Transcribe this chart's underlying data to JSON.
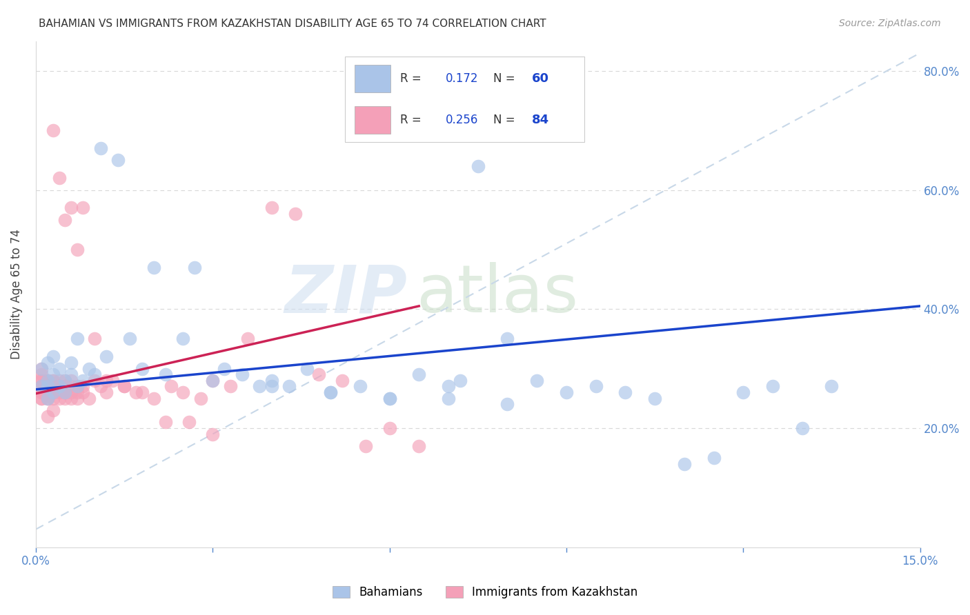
{
  "title": "BAHAMIAN VS IMMIGRANTS FROM KAZAKHSTAN DISABILITY AGE 65 TO 74 CORRELATION CHART",
  "source": "Source: ZipAtlas.com",
  "ylabel": "Disability Age 65 to 74",
  "xlim": [
    0.0,
    0.15
  ],
  "ylim": [
    0.0,
    0.85
  ],
  "bahamians_color": "#aac4e8",
  "kazakhstan_color": "#f4a0b8",
  "trendline_blue": "#1a44cc",
  "trendline_pink": "#cc2255",
  "trendline_dashed_color": "#c8d8e8",
  "grid_color": "#d8d8d8",
  "right_tick_color": "#5588cc",
  "blue_line_x": [
    0.0,
    0.15
  ],
  "blue_line_y": [
    0.265,
    0.405
  ],
  "pink_line_x": [
    0.0,
    0.065
  ],
  "pink_line_y": [
    0.258,
    0.405
  ],
  "dash_line_x": [
    0.0,
    0.15
  ],
  "dash_line_y": [
    0.03,
    0.83
  ],
  "legend_r1": "0.172",
  "legend_n1": "60",
  "legend_r2": "0.256",
  "legend_n2": "84",
  "bahamians_x": [
    0.001,
    0.001,
    0.002,
    0.002,
    0.002,
    0.002,
    0.003,
    0.003,
    0.003,
    0.004,
    0.004,
    0.005,
    0.005,
    0.006,
    0.006,
    0.007,
    0.007,
    0.008,
    0.009,
    0.01,
    0.011,
    0.012,
    0.014,
    0.016,
    0.018,
    0.02,
    0.022,
    0.025,
    0.027,
    0.03,
    0.032,
    0.035,
    0.038,
    0.04,
    0.043,
    0.046,
    0.05,
    0.055,
    0.06,
    0.065,
    0.07,
    0.072,
    0.075,
    0.08,
    0.085,
    0.09,
    0.095,
    0.1,
    0.105,
    0.11,
    0.115,
    0.12,
    0.125,
    0.13,
    0.135,
    0.04,
    0.05,
    0.06,
    0.07,
    0.08
  ],
  "bahamians_y": [
    0.3,
    0.27,
    0.28,
    0.31,
    0.25,
    0.27,
    0.29,
    0.26,
    0.32,
    0.3,
    0.27,
    0.28,
    0.26,
    0.31,
    0.29,
    0.27,
    0.35,
    0.28,
    0.3,
    0.29,
    0.67,
    0.32,
    0.65,
    0.35,
    0.3,
    0.47,
    0.29,
    0.35,
    0.47,
    0.28,
    0.3,
    0.29,
    0.27,
    0.28,
    0.27,
    0.3,
    0.26,
    0.27,
    0.25,
    0.29,
    0.27,
    0.28,
    0.64,
    0.35,
    0.28,
    0.26,
    0.27,
    0.26,
    0.25,
    0.14,
    0.15,
    0.26,
    0.27,
    0.2,
    0.27,
    0.27,
    0.26,
    0.25,
    0.25,
    0.24
  ],
  "kazakhstan_x": [
    0.0005,
    0.001,
    0.001,
    0.001,
    0.001,
    0.001,
    0.001,
    0.001,
    0.001,
    0.001,
    0.0015,
    0.002,
    0.002,
    0.002,
    0.002,
    0.002,
    0.002,
    0.002,
    0.002,
    0.002,
    0.002,
    0.002,
    0.002,
    0.003,
    0.003,
    0.003,
    0.003,
    0.003,
    0.003,
    0.003,
    0.003,
    0.004,
    0.004,
    0.004,
    0.004,
    0.004,
    0.005,
    0.005,
    0.005,
    0.005,
    0.005,
    0.006,
    0.006,
    0.006,
    0.006,
    0.007,
    0.007,
    0.007,
    0.008,
    0.008,
    0.009,
    0.01,
    0.011,
    0.012,
    0.013,
    0.015,
    0.017,
    0.02,
    0.023,
    0.025,
    0.028,
    0.03,
    0.033,
    0.036,
    0.04,
    0.044,
    0.048,
    0.052,
    0.056,
    0.06,
    0.065,
    0.003,
    0.004,
    0.005,
    0.006,
    0.007,
    0.008,
    0.01,
    0.012,
    0.015,
    0.018,
    0.022,
    0.026,
    0.03
  ],
  "kazakhstan_y": [
    0.28,
    0.26,
    0.27,
    0.28,
    0.25,
    0.29,
    0.3,
    0.26,
    0.27,
    0.25,
    0.27,
    0.26,
    0.27,
    0.28,
    0.26,
    0.25,
    0.27,
    0.26,
    0.28,
    0.25,
    0.27,
    0.26,
    0.22,
    0.26,
    0.28,
    0.27,
    0.25,
    0.26,
    0.27,
    0.23,
    0.28,
    0.27,
    0.26,
    0.25,
    0.27,
    0.28,
    0.26,
    0.25,
    0.27,
    0.28,
    0.26,
    0.27,
    0.25,
    0.26,
    0.28,
    0.27,
    0.25,
    0.26,
    0.27,
    0.26,
    0.25,
    0.28,
    0.27,
    0.26,
    0.28,
    0.27,
    0.26,
    0.25,
    0.27,
    0.26,
    0.25,
    0.28,
    0.27,
    0.35,
    0.57,
    0.56,
    0.29,
    0.28,
    0.17,
    0.2,
    0.17,
    0.7,
    0.62,
    0.55,
    0.57,
    0.5,
    0.57,
    0.35,
    0.28,
    0.27,
    0.26,
    0.21,
    0.21,
    0.19
  ]
}
